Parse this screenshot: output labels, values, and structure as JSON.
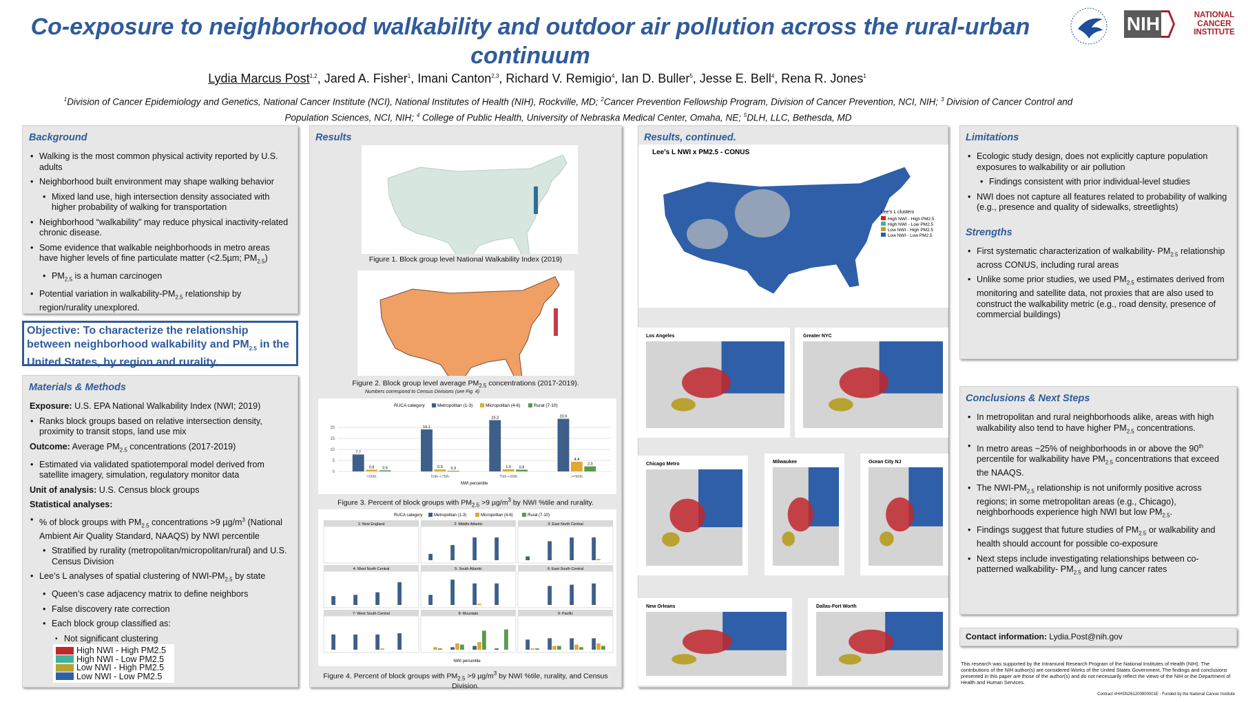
{
  "header": {
    "title": "Co-exposure to neighborhood walkability and outdoor air pollution across the rural-urban continuum",
    "authors": [
      {
        "u": "Lydia Marcus Post"
      },
      {
        "sup": "1,2"
      },
      ", Jared A. Fisher",
      {
        "sup": "1"
      },
      ", Imani Canton",
      {
        "sup": "2,3"
      },
      ", Richard V. Remigio",
      {
        "sup": "4"
      },
      ", Ian D. Buller",
      {
        "sup": "5"
      },
      ", Jesse E. Bell",
      {
        "sup": "4"
      },
      ", Rena R. Jones",
      {
        "sup": "1"
      }
    ],
    "affiliations": [
      {
        "sup": "1"
      },
      "Division of Cancer Epidemiology and Genetics, National Cancer Institute (NCI), National Institutes of Health (NIH), Rockville, MD; ",
      {
        "sup": "2"
      },
      "Cancer Prevention Fellowship Program, Division of Cancer Prevention, NCI, NIH; ",
      {
        "sup": "3"
      },
      " Division of Cancer Control and Population Sciences, NCI, NIH; ",
      {
        "sup": "4"
      },
      " College of Public Health, University of Nebraska Medical Center, Omaha, NE; ",
      {
        "sup": "5"
      },
      "DLH, LLC, Bethesda, MD"
    ]
  },
  "logos": {
    "nih": "NIH",
    "nci": [
      "NATIONAL",
      "CANCER",
      "INSTITUTE"
    ]
  },
  "background": {
    "heading": "Background",
    "items": [
      {
        "level": 1,
        "text": "Walking is the most common physical activity reported by U.S. adults"
      },
      {
        "level": 1,
        "text": "Neighborhood built environment may shape walking behavior"
      },
      {
        "level": 2,
        "text": "Mixed land use, high intersection density associated with higher probability of walking for transportation"
      },
      {
        "level": 1,
        "text": "Neighborhood “walkability” may reduce physical inactivity-related chronic disease."
      },
      {
        "level": 1,
        "text": [
          "Some evidence that walkable neighborhoods in metro areas have higher levels of fine particulate matter (<2.5µm; PM",
          {
            "sub": "2.5"
          },
          ")"
        ]
      },
      {
        "level": 2,
        "text": [
          "PM",
          {
            "sub": "2.5"
          },
          " is a human carcinogen"
        ]
      },
      {
        "level": 1,
        "text": [
          "Potential variation in walkability-PM",
          {
            "sub": "2.5"
          },
          " relationship by region/rurality unexplored."
        ]
      }
    ]
  },
  "objective": [
    "Objective: To characterize the relationship between neighborhood walkability and PM",
    {
      "sub": "2.5"
    },
    " in the United States, by region and rurality."
  ],
  "methods": {
    "heading": "Materials & Methods",
    "items": [
      {
        "level": 0,
        "text": [
          {
            "b": "Exposure:"
          },
          " U.S. EPA National Walkability Index (NWI; 2019)"
        ]
      },
      {
        "level": 1,
        "text": "Ranks block groups based on relative intersection density, proximity to transit stops, land use mix"
      },
      {
        "level": 0,
        "text": [
          {
            "b": "Outcome:"
          },
          " Average PM",
          {
            "sub": "2.5"
          },
          " concentrations (2017-2019)"
        ]
      },
      {
        "level": 1,
        "text": "Estimated via validated spatiotemporal model derived from satellite imagery, simulation, regulatory monitor data"
      },
      {
        "level": 0,
        "text": [
          {
            "b": "Unit of analysis:"
          },
          " U.S. Census block groups"
        ]
      },
      {
        "level": 0,
        "text": [
          {
            "b": "Statistical analyses:"
          }
        ]
      },
      {
        "level": 1,
        "text": [
          "% of block groups with PM",
          {
            "sub": "2.5"
          },
          " concentrations >9 µg/m",
          {
            "sup": "3"
          },
          " (National Ambient Air Quality Standard, NAAQS) by NWI percentile"
        ]
      },
      {
        "level": 2,
        "text": "Stratified by rurality (metropolitan/micropolitan/rural) and U.S. Census Division"
      },
      {
        "level": 1,
        "text": [
          "Lee’s L analyses of spatial clustering of NWI-PM",
          {
            "sub": "2.5"
          },
          " by state"
        ]
      },
      {
        "level": 2,
        "text": "Queen’s case adjacency matrix to define neighbors"
      },
      {
        "level": 2,
        "text": "False discovery rate correction"
      },
      {
        "level": 2,
        "text": "Each block group classified as:"
      },
      {
        "level": 3,
        "text": "Not significant clustering"
      }
    ],
    "clusters": [
      {
        "name": "High NWI - High PM2.5",
        "color": "#c0272d"
      },
      {
        "name": "High NWI - Low PM2.5",
        "color": "#3fb39b"
      },
      {
        "name": "Low NWI - High PM2.5",
        "color": "#b8a230"
      },
      {
        "name": "Low NWI - Low PM2.5",
        "color": "#2e5fa8"
      }
    ]
  },
  "results": {
    "heading": "Results",
    "fig1_caption": "Figure 1. Block group level National Walkability Index (2019)",
    "fig2_caption": [
      "Figure 2. Block group level average PM",
      {
        "sub": "2.5"
      },
      " concentrations (2017-2019)."
    ],
    "fig2_note": "Numbers correspond to Census Divisions (see Fig. 4)",
    "fig3": {
      "type": "bar",
      "legend_title": "RUCA category",
      "categories": [
        "<50th",
        "50th-<75th",
        "75th-<90th",
        ">=90th"
      ],
      "x_label": "NWI percentile",
      "ylim": [
        0,
        25
      ],
      "yticks": [
        0,
        5,
        10,
        15,
        20
      ],
      "series": [
        {
          "name": "Metropolitan (1-3)",
          "color": "#3d5f8a",
          "values": [
            7.7,
            19.1,
            23.3,
            23.9
          ],
          "value_labels": [
            "7.7",
            "19.1",
            "23.3",
            "23.9"
          ]
        },
        {
          "name": "Micropolitan (4-6)",
          "color": "#e0a834",
          "values": [
            0.8,
            0.9,
            1.0,
            4.4
          ],
          "value_labels": [
            "0.8",
            "0.9",
            "1.0",
            "4.4"
          ]
        },
        {
          "name": "Rural (7-10)",
          "color": "#5c9a4e",
          "values": [
            0.5,
            0.3,
            0.8,
            2.3
          ],
          "value_labels": [
            "0.5",
            "0.3",
            "0.8",
            "2.3"
          ]
        }
      ],
      "caption": [
        "Figure 3. Percent of block groups with PM",
        {
          "sub": "2.5"
        },
        " >9 µg/m",
        {
          "sup": "3"
        },
        " by NWI %tile and rurality."
      ]
    },
    "fig4": {
      "type": "bar",
      "legend_title": "RUCA category",
      "legend": [
        {
          "name": "Metropolitan (1-3)",
          "color": "#3d5f8a"
        },
        {
          "name": "Micropolitan (4-6)",
          "color": "#e0a834"
        },
        {
          "name": "Rural (7-10)",
          "color": "#5c9a4e"
        }
      ],
      "x_label": "NWI percentile",
      "ylim": [
        0,
        25
      ],
      "panels": [
        {
          "title": "1: New England",
          "values": [
            [
              0,
              0,
              0,
              0
            ],
            [
              0,
              0,
              0,
              0
            ],
            [
              0,
              0,
              0,
              0
            ]
          ]
        },
        {
          "title": "2: Middle Atlantic",
          "values": [
            [
              5,
              12,
              18,
              18
            ],
            [
              0,
              0,
              0,
              0
            ],
            [
              0,
              0,
              0,
              0
            ]
          ]
        },
        {
          "title": "3: East North Central",
          "values": [
            [
              3,
              15,
              18,
              18
            ],
            [
              0,
              0,
              0,
              1
            ],
            [
              0,
              0,
              0,
              0
            ]
          ]
        },
        {
          "title": "4: West North Central",
          "values": [
            [
              7,
              8,
              10,
              18
            ],
            [
              0,
              0,
              0,
              0
            ],
            [
              0,
              0,
              0,
              0
            ]
          ]
        },
        {
          "title": "5: South Atlantic",
          "values": [
            [
              8,
              20,
              17,
              17
            ],
            [
              0,
              0,
              1,
              0
            ],
            [
              0,
              0,
              0,
              0
            ]
          ]
        },
        {
          "title": "6: East South Central",
          "values": [
            [
              0,
              15,
              16,
              17
            ],
            [
              0,
              0,
              0,
              0
            ],
            [
              0,
              0,
              0,
              0
            ]
          ]
        },
        {
          "title": "7: West South Central",
          "values": [
            [
              12,
              12,
              12,
              13
            ],
            [
              0,
              0,
              1,
              0
            ],
            [
              0,
              0,
              0,
              0
            ]
          ]
        },
        {
          "title": "8: Mountain",
          "values": [
            [
              0,
              2,
              3,
              1
            ],
            [
              2,
              5,
              6,
              0
            ],
            [
              1,
              4,
              15,
              16
            ]
          ]
        },
        {
          "title": "9: Pacific",
          "values": [
            [
              8,
              9,
              9,
              9
            ],
            [
              1,
              3,
              4,
              5
            ],
            [
              1,
              3,
              2,
              3
            ]
          ]
        }
      ],
      "caption": [
        "Figure 4. Percent of block groups with PM",
        {
          "sub": "2.5"
        },
        " >9 µg/m",
        {
          "sup": "3"
        },
        " by NWI %tile, rurality, and Census Division."
      ]
    }
  },
  "results_continued": {
    "heading": "Results, continued.",
    "conus_title": "Lee's L NWI x PM2.5 - CONUS",
    "legend_title": "Lee's L clusters",
    "maps": [
      "Los Angeles",
      "Greater NYC",
      "Chicago Metro",
      "Milwaukee",
      "Ocean City NJ",
      "New Orleans",
      "Dallas-Fort Worth"
    ]
  },
  "limitations": {
    "heading": "Limitations",
    "items": [
      {
        "level": 1,
        "text": "Ecologic study design, does not explicitly capture population exposures to walkability or air pollution"
      },
      {
        "level": 2,
        "text": "Findings consistent with prior individual-level studies"
      },
      {
        "level": 1,
        "text": "NWI does not capture all features related to probability of walking (e.g., presence and quality of sidewalks, streetlights)"
      }
    ]
  },
  "strengths": {
    "heading": "Strengths",
    "items": [
      {
        "level": 1,
        "text": [
          "First systematic characterization of walkability- PM",
          {
            "sub": "2.5"
          },
          " relationship across CONUS, including rural areas"
        ]
      },
      {
        "level": 1,
        "text": [
          "Unlike some prior studies, we used PM",
          {
            "sub": "2.5"
          },
          " estimates derived from monitoring and satellite data, not proxies that are also used to construct the walkability metric (e.g., road density, presence of commercial buildings)"
        ]
      }
    ]
  },
  "conclusions": {
    "heading": "Conclusions & Next Steps",
    "items": [
      {
        "level": 1,
        "text": [
          "In metropolitan and rural neighborhoods alike, areas with high walkability also tend to have higher PM",
          {
            "sub": "2.5"
          },
          " concentrations."
        ]
      },
      {
        "level": 1,
        "text": [
          "In metro areas ~25% of neighborhoods in or above the 90",
          {
            "sup": "th"
          },
          " percentile for walkability have PM",
          {
            "sub": "2.5"
          },
          " concentrations that exceed the NAAQS."
        ]
      },
      {
        "level": 1,
        "text": [
          "The NWI-PM",
          {
            "sub": "2.5"
          },
          " relationship is not uniformly positive across regions; in some metropolitan areas (e.g., Chicago), neighborhoods experience high NWI but low PM",
          {
            "sub": "2.5"
          },
          "."
        ]
      },
      {
        "level": 1,
        "text": [
          "Findings suggest that future studies of PM",
          {
            "sub": "2.5"
          },
          " or walkability and health should account for possible co-exposure"
        ]
      },
      {
        "level": 1,
        "text": [
          "Next steps include investigating relationships between co-patterned walkability- PM",
          {
            "sub": "2.5"
          },
          " and lung cancer rates"
        ]
      }
    ]
  },
  "contact": [
    {
      "b": "Contact information:"
    },
    " Lydia.Post@nih.gov"
  ],
  "disclaimer": "This research was supported by the Intramural Research Program of the National Institutes of Health (NIH). The contributions of the NIH author(s) are considered Works of the United States Government. The findings and conclusions presented in this paper are those of the author(s) and do not necessarily reflect the views of the NIH or the Department of Health and Human Services.",
  "contract": "Contract #HHSN261200800001E - Funded by the National Cancer Institute"
}
